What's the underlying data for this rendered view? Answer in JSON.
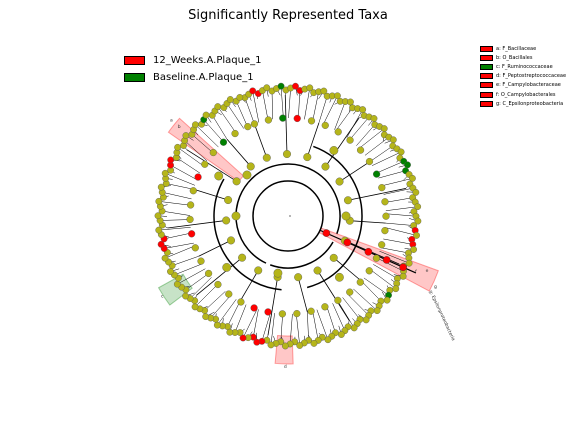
{
  "title": "Significantly Represented Taxa",
  "colors": {
    "red": "#ff0000",
    "green": "#008000",
    "olive": "#b5b51a",
    "shade_red": "#ff0000",
    "shade_green": "#008000"
  },
  "classes": [
    {
      "name": "12_Weeks.A.Plaque_1",
      "color": "#ff0000"
    },
    {
      "name": "Baseline.A.Plaque_1",
      "color": "#008000"
    }
  ],
  "clades": [
    {
      "label": "a: F_Bacillaceae",
      "color": "#ff0000"
    },
    {
      "label": "b: O_Bacillales",
      "color": "#ff0000"
    },
    {
      "label": "c: F_Ruminococcaceae",
      "color": "#008000"
    },
    {
      "label": "d: F_Peptostreptococcaceae",
      "color": "#ff0000"
    },
    {
      "label": "e: F_Campylobacteraceae",
      "color": "#ff0000"
    },
    {
      "label": "f: O_Campylobacterales",
      "color": "#ff0000"
    },
    {
      "label": "g: C_Epsilonproteobacteria",
      "color": "#ff0000"
    }
  ],
  "shade_labels": [
    "a",
    "b",
    "c",
    "d",
    "e",
    "f",
    "g"
  ],
  "rotated_labels": {
    "g_side": "g: Epsilonproteobacteria"
  }
}
